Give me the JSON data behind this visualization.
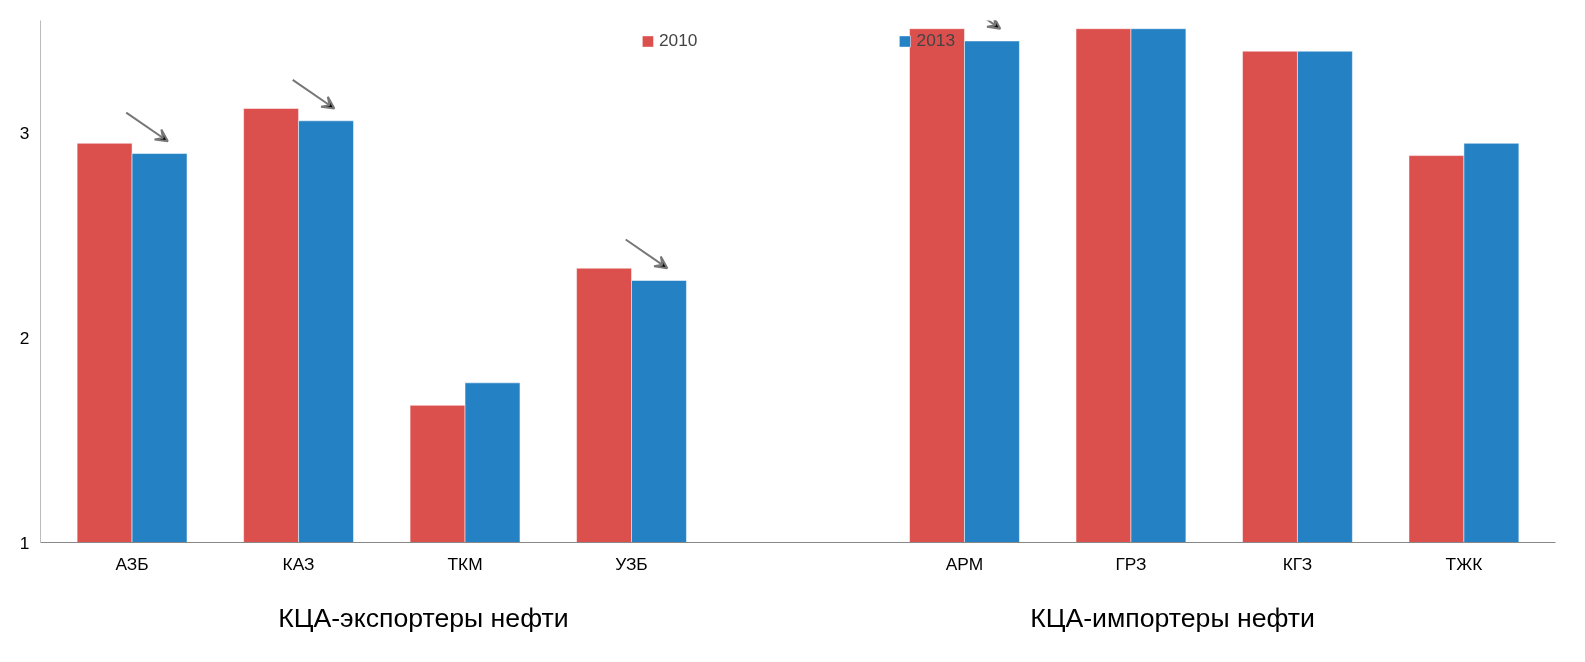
{
  "chart_data": {
    "type": "bar",
    "categories": [
      "АЗБ",
      "КАЗ",
      "ТКМ",
      "УЗБ",
      null,
      "АРМ",
      "ГРЗ",
      "КГЗ",
      "ТЖК"
    ],
    "series": [
      {
        "name": "2010",
        "color": "#db4f4d",
        "values": [
          2.95,
          3.12,
          1.67,
          2.34,
          null,
          3.51,
          3.51,
          3.4,
          2.89
        ]
      },
      {
        "name": "2013",
        "color": "#2482c4",
        "values": [
          2.9,
          3.06,
          1.78,
          2.28,
          null,
          3.45,
          3.51,
          3.4,
          2.95
        ]
      }
    ],
    "ylim": [
      1,
      3.55
    ],
    "yticks": [
      1,
      2,
      3
    ],
    "grid": false,
    "legend": "top",
    "annotations": [
      "КЦА-экспортеры нефти",
      "КЦА-импортеры нефти"
    ]
  }
}
